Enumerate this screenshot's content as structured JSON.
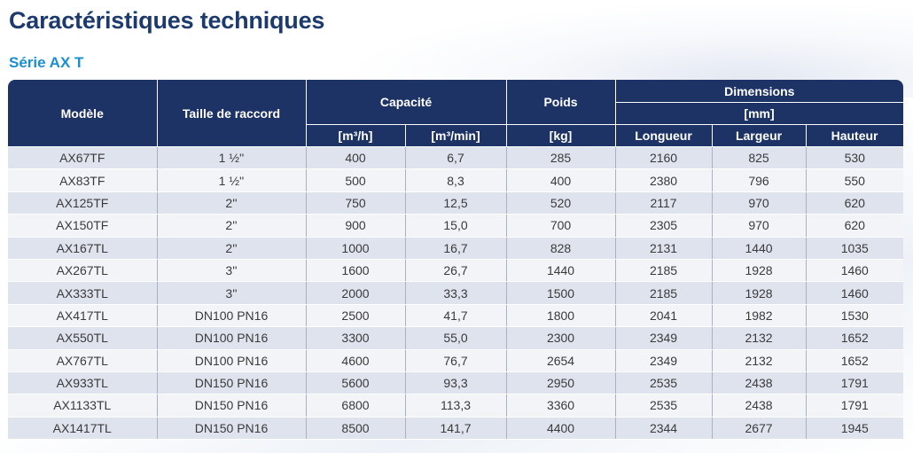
{
  "title": "Caractéristiques techniques",
  "subtitle": "Série AX T",
  "table": {
    "headers": {
      "model": "Modèle",
      "connection": "Taille de raccord",
      "capacity": "Capacité",
      "weight": "Poids",
      "dimensions": "Dimensions",
      "dimensions_unit": "[mm]",
      "capacity_unit_1": "[m³/h]",
      "capacity_unit_2": "[m³/min]",
      "weight_unit": "[kg]",
      "length": "Longueur",
      "width": "Largeur",
      "height": "Hauteur"
    },
    "rows": [
      [
        "AX67TF",
        "1 ½''",
        "400",
        "6,7",
        "285",
        "2160",
        "825",
        "530"
      ],
      [
        "AX83TF",
        "1 ½''",
        "500",
        "8,3",
        "400",
        "2380",
        "796",
        "550"
      ],
      [
        "AX125TF",
        "2''",
        "750",
        "12,5",
        "520",
        "2117",
        "970",
        "620"
      ],
      [
        "AX150TF",
        "2''",
        "900",
        "15,0",
        "700",
        "2305",
        "970",
        "620"
      ],
      [
        "AX167TL",
        "2''",
        "1000",
        "16,7",
        "828",
        "2131",
        "1440",
        "1035"
      ],
      [
        "AX267TL",
        "3''",
        "1600",
        "26,7",
        "1440",
        "2185",
        "1928",
        "1460"
      ],
      [
        "AX333TL",
        "3''",
        "2000",
        "33,3",
        "1500",
        "2185",
        "1928",
        "1460"
      ],
      [
        "AX417TL",
        "DN100 PN16",
        "2500",
        "41,7",
        "1800",
        "2041",
        "1982",
        "1530"
      ],
      [
        "AX550TL",
        "DN100 PN16",
        "3300",
        "55,0",
        "2300",
        "2349",
        "2132",
        "1652"
      ],
      [
        "AX767TL",
        "DN100 PN16",
        "4600",
        "76,7",
        "2654",
        "2349",
        "2132",
        "1652"
      ],
      [
        "AX933TL",
        "DN150 PN16",
        "5600",
        "93,3",
        "2950",
        "2535",
        "2438",
        "1791"
      ],
      [
        "AX1133TL",
        "DN150 PN16",
        "6800",
        "113,3",
        "3360",
        "2535",
        "2438",
        "1791"
      ],
      [
        "AX1417TL",
        "DN150 PN16",
        "8500",
        "141,7",
        "4400",
        "2344",
        "2677",
        "1945"
      ]
    ]
  }
}
